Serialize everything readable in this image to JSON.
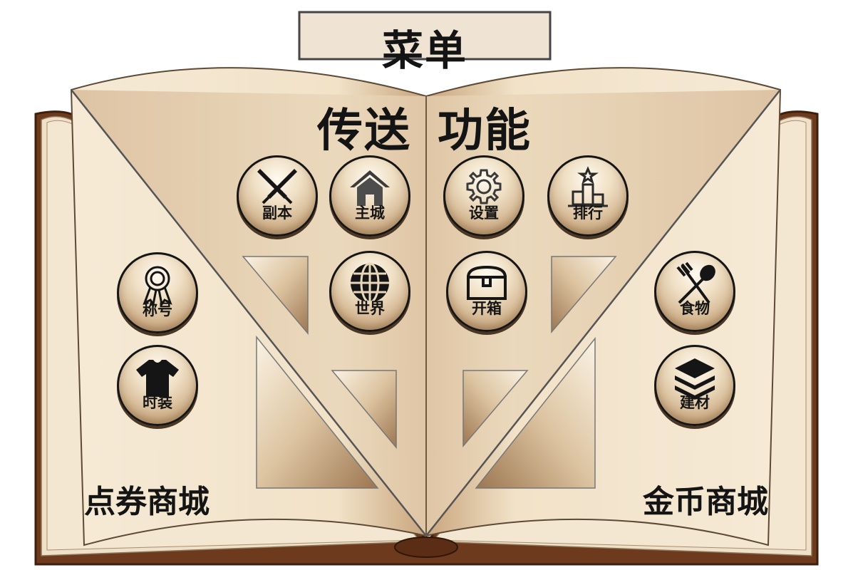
{
  "menu": {
    "title": "菜单"
  },
  "sections": {
    "teleport": "传送",
    "function": "功能"
  },
  "shops": {
    "voucher": "点券商城",
    "gold": "金币商城"
  },
  "buttons": {
    "dungeon": "副本",
    "main_city": "主城",
    "world": "世界",
    "settings": "设置",
    "ranking": "排行",
    "open_box": "开箱",
    "title": "称号",
    "fashion": "时装",
    "food": "食物",
    "materials": "建材"
  },
  "colors": {
    "page": "#f7ebd6",
    "book_cover": "#6e3a1e",
    "button_rim": "#151515",
    "text": "#141414"
  }
}
